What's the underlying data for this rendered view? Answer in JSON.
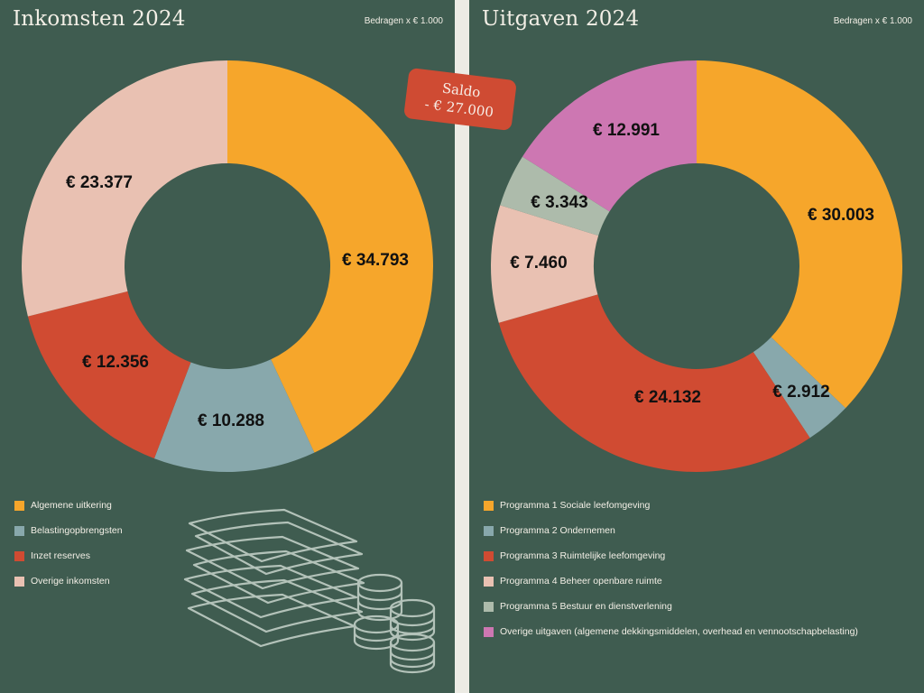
{
  "left": {
    "title": "Inkomsten 2024",
    "unit_note": "Bedragen x € 1.000"
  },
  "right": {
    "title": "Uitgaven 2024",
    "unit_note": "Bedragen x € 1.000"
  },
  "saldo": {
    "label": "Saldo",
    "value": "- € 27.000"
  },
  "illustration": {
    "icon": "money-stack-and-coins-icon",
    "color": "#b3c2b9"
  },
  "chart_data": [
    {
      "type": "pie",
      "variant": "donut",
      "title": "Inkomsten 2024",
      "unit": "Bedragen x € 1.000",
      "legend_position": "bottom-left",
      "slices": [
        {
          "name": "Algemene uitkering",
          "value": 34793,
          "label": "€ 34.793",
          "color": "#f6a62b"
        },
        {
          "name": "Belastingopbrengsten",
          "value": 10288,
          "label": "€ 10.288",
          "color": "#88a8ac"
        },
        {
          "name": "Inzet reserves",
          "value": 12356,
          "label": "€ 12.356",
          "color": "#d04b32"
        },
        {
          "name": "Overige inkomsten",
          "value": 23377,
          "label": "€ 23.377",
          "color": "#e9c1b2"
        }
      ]
    },
    {
      "type": "pie",
      "variant": "donut",
      "title": "Uitgaven 2024",
      "unit": "Bedragen x € 1.000",
      "legend_position": "bottom-left",
      "slices": [
        {
          "name": "Programma 1 Sociale leefomgeving",
          "value": 30003,
          "label": "€ 30.003",
          "color": "#f6a62b"
        },
        {
          "name": "Programma 2 Ondernemen",
          "value": 2912,
          "label": "€ 2.912",
          "color": "#88a8ac"
        },
        {
          "name": "Programma 3 Ruimtelijke leefomgeving",
          "value": 24132,
          "label": "€ 24.132",
          "color": "#d04b32"
        },
        {
          "name": "Programma 4 Beheer openbare ruimte",
          "value": 7460,
          "label": "€ 7.460",
          "color": "#e9c1b2"
        },
        {
          "name": "Programma 5 Bestuur en dienstverlening",
          "value": 3343,
          "label": "€ 3.343",
          "color": "#adbbab"
        },
        {
          "name": "Overige uitgaven (algemene dekkingsmiddelen, overhead en vennootschapbelasting)",
          "value": 12991,
          "label": "€ 12.991",
          "color": "#cd77b2"
        }
      ]
    }
  ]
}
